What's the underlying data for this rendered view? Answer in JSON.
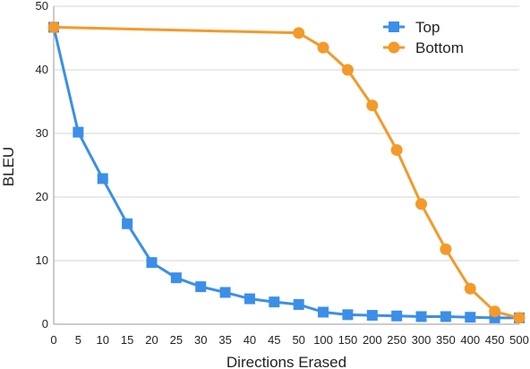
{
  "chart_data": {
    "type": "line",
    "title": "",
    "xlabel": "Directions Erased",
    "ylabel": "BLEU",
    "categories": [
      "0",
      "5",
      "10",
      "15",
      "20",
      "25",
      "30",
      "35",
      "40",
      "45",
      "50",
      "100",
      "150",
      "200",
      "250",
      "300",
      "350",
      "400",
      "450",
      "500"
    ],
    "ylim": [
      0,
      50
    ],
    "yticks": [
      "0",
      "10",
      "20",
      "30",
      "40",
      "50"
    ],
    "grid": true,
    "legend_position": "top-right",
    "series": [
      {
        "name": "Top",
        "marker": "square",
        "color": "#3b8fe8",
        "values": [
          46.7,
          30.2,
          22.9,
          15.8,
          9.7,
          7.3,
          5.9,
          5.0,
          4.0,
          3.5,
          3.1,
          1.9,
          1.5,
          1.4,
          1.3,
          1.2,
          1.2,
          1.1,
          1.0,
          1.0
        ]
      },
      {
        "name": "Bottom",
        "marker": "circle",
        "color": "#f39a2a",
        "values": [
          46.7,
          null,
          null,
          null,
          null,
          null,
          null,
          null,
          null,
          null,
          45.8,
          43.5,
          40.0,
          34.4,
          27.4,
          18.9,
          11.8,
          5.6,
          2.0,
          1.0
        ]
      }
    ]
  }
}
